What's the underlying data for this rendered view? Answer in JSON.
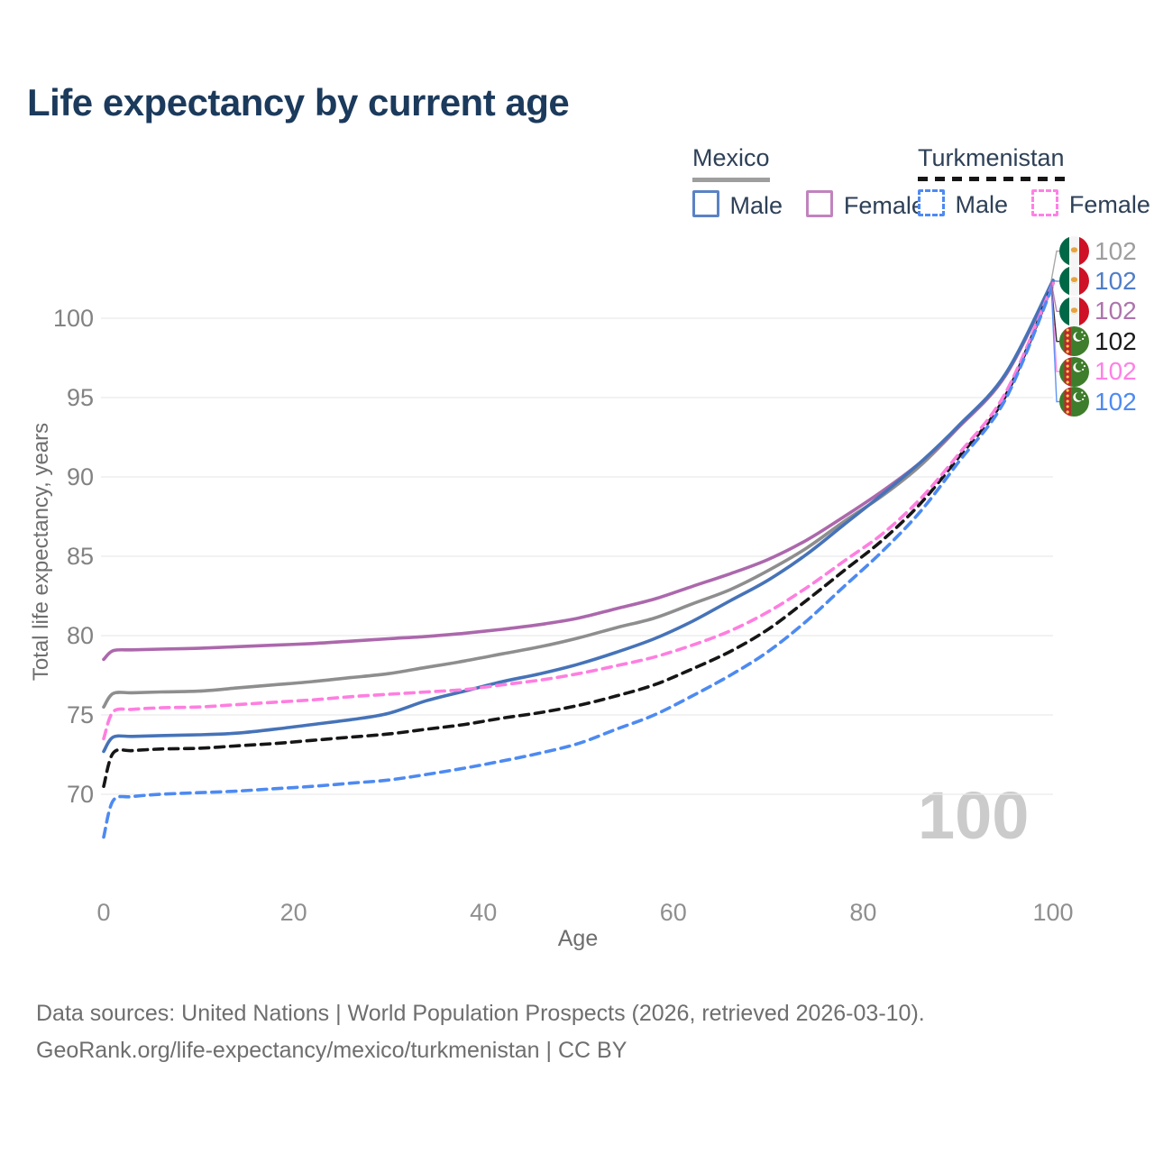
{
  "page": {
    "title": "Life expectancy by current age",
    "watermark_age": "100"
  },
  "legend": {
    "mexico": {
      "title": "Mexico",
      "male_label": "Male",
      "female_label": "Female"
    },
    "turkmenistan": {
      "title": "Turkmenistan",
      "male_label": "Male",
      "female_label": "Female"
    }
  },
  "footer": {
    "line1": "Data sources: United Nations | World Population Prospects (2026, retrieved 2026-03-10).",
    "line2": "GeoRank.org/life-expectancy/mexico/turkmenistan | CC BY"
  },
  "colors": {
    "title_text": "#1b3a5c",
    "legend_text": "#2e4057",
    "grid_line": "#e9e9e9",
    "tick_label": "#828282",
    "axis_title": "#6e6e6e",
    "watermark": "#cbcbcb",
    "mexico_underline": "#9e9e9e",
    "turkmenistan_underline": "#161616"
  },
  "chart_data": {
    "type": "line",
    "title": "Life expectancy by current age",
    "xlabel": "Age",
    "ylabel": "Total life expectancy, years",
    "xlim": [
      0,
      100
    ],
    "ylim": [
      66,
      103
    ],
    "x_ticks": [
      0,
      20,
      40,
      60,
      80,
      100
    ],
    "y_ticks": [
      70,
      75,
      80,
      85,
      90,
      95,
      100
    ],
    "grid": true,
    "legend_position": "top-right",
    "series": [
      {
        "id": "mexico-both",
        "name": "Mexico (both sexes)",
        "color": "#8e8e8e",
        "dash": "solid",
        "points": [
          [
            0,
            75.5
          ],
          [
            1,
            76.35
          ],
          [
            3,
            76.4
          ],
          [
            6,
            76.45
          ],
          [
            10,
            76.5
          ],
          [
            14,
            76.7
          ],
          [
            18,
            76.9
          ],
          [
            22,
            77.1
          ],
          [
            26,
            77.35
          ],
          [
            30,
            77.6
          ],
          [
            34,
            78.0
          ],
          [
            38,
            78.4
          ],
          [
            42,
            78.85
          ],
          [
            46,
            79.3
          ],
          [
            50,
            79.85
          ],
          [
            54,
            80.5
          ],
          [
            58,
            81.1
          ],
          [
            62,
            82.0
          ],
          [
            66,
            82.9
          ],
          [
            70,
            84.1
          ],
          [
            74,
            85.5
          ],
          [
            78,
            87.2
          ],
          [
            82,
            88.8
          ],
          [
            86,
            90.7
          ],
          [
            90,
            93.1
          ],
          [
            95,
            96.4
          ],
          [
            100,
            102.35
          ]
        ]
      },
      {
        "id": "mexico-female",
        "name": "Mexico Female",
        "color": "#ac68ac",
        "dash": "solid",
        "points": [
          [
            0,
            78.5
          ],
          [
            1,
            79.05
          ],
          [
            3,
            79.1
          ],
          [
            6,
            79.15
          ],
          [
            10,
            79.2
          ],
          [
            14,
            79.3
          ],
          [
            18,
            79.4
          ],
          [
            22,
            79.5
          ],
          [
            26,
            79.65
          ],
          [
            30,
            79.8
          ],
          [
            34,
            79.95
          ],
          [
            38,
            80.15
          ],
          [
            42,
            80.4
          ],
          [
            46,
            80.7
          ],
          [
            50,
            81.1
          ],
          [
            54,
            81.7
          ],
          [
            58,
            82.3
          ],
          [
            62,
            83.1
          ],
          [
            66,
            83.9
          ],
          [
            70,
            84.8
          ],
          [
            74,
            86.0
          ],
          [
            78,
            87.5
          ],
          [
            82,
            89.1
          ],
          [
            86,
            90.9
          ],
          [
            90,
            93.1
          ],
          [
            95,
            96.4
          ],
          [
            100,
            102.3
          ]
        ]
      },
      {
        "id": "mexico-male",
        "name": "Mexico Male",
        "color": "#4673b8",
        "dash": "solid",
        "points": [
          [
            0,
            72.7
          ],
          [
            1,
            73.6
          ],
          [
            3,
            73.65
          ],
          [
            6,
            73.7
          ],
          [
            10,
            73.75
          ],
          [
            14,
            73.85
          ],
          [
            18,
            74.1
          ],
          [
            22,
            74.4
          ],
          [
            26,
            74.7
          ],
          [
            30,
            75.1
          ],
          [
            34,
            75.9
          ],
          [
            38,
            76.5
          ],
          [
            42,
            77.1
          ],
          [
            46,
            77.6
          ],
          [
            50,
            78.2
          ],
          [
            54,
            78.95
          ],
          [
            58,
            79.8
          ],
          [
            62,
            80.9
          ],
          [
            66,
            82.2
          ],
          [
            70,
            83.5
          ],
          [
            74,
            85.1
          ],
          [
            78,
            87.0
          ],
          [
            82,
            88.9
          ],
          [
            86,
            90.9
          ],
          [
            90,
            93.2
          ],
          [
            95,
            96.5
          ],
          [
            100,
            102.4
          ]
        ]
      },
      {
        "id": "turkmenistan-both",
        "name": "Turkmenistan (both sexes)",
        "color": "#161616",
        "dash": "dashed",
        "points": [
          [
            0,
            70.5
          ],
          [
            1,
            72.6
          ],
          [
            3,
            72.75
          ],
          [
            6,
            72.85
          ],
          [
            10,
            72.9
          ],
          [
            14,
            73.05
          ],
          [
            18,
            73.2
          ],
          [
            22,
            73.4
          ],
          [
            26,
            73.6
          ],
          [
            30,
            73.8
          ],
          [
            34,
            74.1
          ],
          [
            38,
            74.4
          ],
          [
            42,
            74.8
          ],
          [
            46,
            75.15
          ],
          [
            50,
            75.6
          ],
          [
            54,
            76.2
          ],
          [
            58,
            76.9
          ],
          [
            62,
            77.9
          ],
          [
            66,
            79.0
          ],
          [
            70,
            80.4
          ],
          [
            74,
            82.2
          ],
          [
            78,
            84.1
          ],
          [
            82,
            86.0
          ],
          [
            86,
            88.3
          ],
          [
            90,
            91.2
          ],
          [
            95,
            95.1
          ],
          [
            100,
            102.2
          ]
        ]
      },
      {
        "id": "turkmenistan-female",
        "name": "Turkmenistan Female",
        "color": "#ff7ee0",
        "dash": "dashed",
        "points": [
          [
            0,
            73.5
          ],
          [
            1,
            75.2
          ],
          [
            3,
            75.35
          ],
          [
            6,
            75.45
          ],
          [
            10,
            75.5
          ],
          [
            14,
            75.65
          ],
          [
            18,
            75.8
          ],
          [
            22,
            75.95
          ],
          [
            26,
            76.15
          ],
          [
            30,
            76.3
          ],
          [
            34,
            76.45
          ],
          [
            38,
            76.6
          ],
          [
            42,
            76.9
          ],
          [
            46,
            77.2
          ],
          [
            50,
            77.6
          ],
          [
            54,
            78.1
          ],
          [
            58,
            78.65
          ],
          [
            62,
            79.4
          ],
          [
            66,
            80.3
          ],
          [
            70,
            81.5
          ],
          [
            74,
            83.0
          ],
          [
            78,
            84.7
          ],
          [
            82,
            86.4
          ],
          [
            86,
            88.6
          ],
          [
            90,
            91.4
          ],
          [
            95,
            95.3
          ],
          [
            100,
            102.2
          ]
        ]
      },
      {
        "id": "turkmenistan-male",
        "name": "Turkmenistan Male",
        "color": "#4d8af2",
        "dash": "dashed",
        "points": [
          [
            0,
            67.3
          ],
          [
            1,
            69.6
          ],
          [
            3,
            69.85
          ],
          [
            6,
            70.0
          ],
          [
            10,
            70.1
          ],
          [
            14,
            70.2
          ],
          [
            18,
            70.35
          ],
          [
            22,
            70.5
          ],
          [
            26,
            70.7
          ],
          [
            30,
            70.9
          ],
          [
            34,
            71.25
          ],
          [
            38,
            71.65
          ],
          [
            42,
            72.1
          ],
          [
            46,
            72.6
          ],
          [
            50,
            73.2
          ],
          [
            54,
            74.1
          ],
          [
            58,
            75.0
          ],
          [
            62,
            76.2
          ],
          [
            66,
            77.5
          ],
          [
            70,
            79.0
          ],
          [
            74,
            80.9
          ],
          [
            78,
            83.1
          ],
          [
            82,
            85.3
          ],
          [
            86,
            87.8
          ],
          [
            90,
            90.9
          ],
          [
            95,
            94.9
          ],
          [
            100,
            102.1
          ]
        ]
      }
    ],
    "end_labels": [
      {
        "series_id": "mexico-both",
        "flag": "mx",
        "value": "102",
        "color": "#9e9e9e"
      },
      {
        "series_id": "mexico-male",
        "flag": "mx",
        "value": "102",
        "color": "#4f7dc9"
      },
      {
        "series_id": "mexico-female",
        "flag": "mx",
        "value": "102",
        "color": "#ad74ad"
      },
      {
        "series_id": "turkmenistan-both",
        "flag": "tm",
        "value": "102",
        "color": "#1a1a1a"
      },
      {
        "series_id": "turkmenistan-female",
        "flag": "tm",
        "value": "102",
        "color": "#ff80e5"
      },
      {
        "series_id": "turkmenistan-male",
        "flag": "tm",
        "value": "102",
        "color": "#4d8af2"
      }
    ]
  }
}
